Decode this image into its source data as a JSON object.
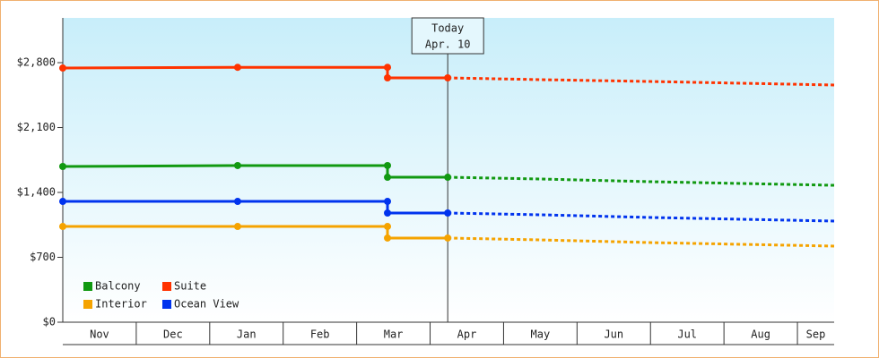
{
  "chart_data": {
    "type": "line",
    "categories": [
      "Nov",
      "Dec",
      "Jan",
      "Feb",
      "Mar",
      "Apr",
      "May",
      "Jun",
      "Jul",
      "Aug",
      "Sep"
    ],
    "x": [
      0,
      2.38,
      4.42,
      4.42,
      5.24,
      6.5,
      8,
      10.5
    ],
    "xlim": [
      0,
      10.5
    ],
    "ylim": [
      0,
      3283
    ],
    "yticks": [
      {
        "value": 0,
        "label": "$0"
      },
      {
        "value": 700,
        "label": "$700"
      },
      {
        "value": 1400,
        "label": "$1,400"
      },
      {
        "value": 2100,
        "label": "$2,100"
      },
      {
        "value": 2800,
        "label": "$2,800"
      }
    ],
    "annotation": {
      "x": 5.24,
      "lines": [
        "Today",
        "Apr. 10"
      ]
    },
    "series": [
      {
        "name": "Balcony",
        "color": "#119911",
        "values": [
          1680,
          1690,
          1690,
          1564,
          1564,
          null,
          null,
          null
        ],
        "forecast_values": [
          null,
          null,
          null,
          null,
          1564,
          1545,
          1516,
          1477
        ]
      },
      {
        "name": "Suite",
        "color": "#ff3300",
        "values": [
          2742,
          2750,
          2750,
          2636,
          2636,
          null,
          null,
          null
        ],
        "forecast_values": [
          null,
          null,
          null,
          null,
          2636,
          2617,
          2597,
          2559
        ]
      },
      {
        "name": "Interior",
        "color": "#f5a300",
        "values": [
          1033,
          1033,
          1033,
          908,
          908,
          null,
          null,
          null
        ],
        "forecast_values": [
          null,
          null,
          null,
          null,
          908,
          888,
          859,
          821
        ]
      },
      {
        "name": "Ocean View",
        "color": "#0033ee",
        "values": [
          1303,
          1303,
          1303,
          1178,
          1178,
          null,
          null,
          null
        ],
        "forecast_values": [
          null,
          null,
          null,
          null,
          1178,
          1159,
          1130,
          1091
        ]
      }
    ]
  }
}
